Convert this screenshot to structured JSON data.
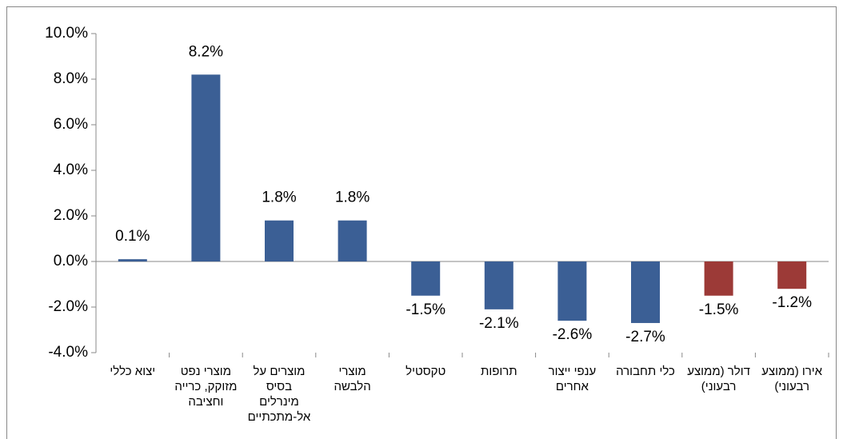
{
  "chart_data": {
    "type": "bar",
    "categories": [
      "יצוא כללי",
      "מוצרי נפט מזוקק, כרייה וחציבה",
      "מוצרים על בסיס מינרלים אל-מתכתיים",
      "מוצרי הלבשה",
      "טקסטיל",
      "תרופות",
      "ענפי ייצור אחרים",
      "כלי תחבורה",
      "דולר (ממוצע רבעוני)",
      "אירו (ממוצע רבעוני)"
    ],
    "values": [
      0.1,
      8.2,
      1.8,
      1.8,
      -1.5,
      -2.1,
      -2.6,
      -2.7,
      -1.5,
      -1.2
    ],
    "value_labels": [
      "0.1%",
      "8.2%",
      "1.8%",
      "1.8%",
      "-1.5%",
      "-2.1%",
      "-2.6%",
      "-2.7%",
      "-1.5%",
      "-1.2%"
    ],
    "colors": [
      "#3b5f95",
      "#3b5f95",
      "#3b5f95",
      "#3b5f95",
      "#3b5f95",
      "#3b5f95",
      "#3b5f95",
      "#3b5f95",
      "#9c3a37",
      "#9c3a37"
    ],
    "ylim": [
      -4,
      10
    ],
    "yticks": [
      {
        "value": -4,
        "label": "-4.0%"
      },
      {
        "value": -2,
        "label": "-2.0%"
      },
      {
        "value": 0,
        "label": "0.0%"
      },
      {
        "value": 2,
        "label": "2.0%"
      },
      {
        "value": 4,
        "label": "4.0%"
      },
      {
        "value": 6,
        "label": "6.0%"
      },
      {
        "value": 8,
        "label": "8.0%"
      },
      {
        "value": 10,
        "label": "10.0%"
      }
    ]
  }
}
